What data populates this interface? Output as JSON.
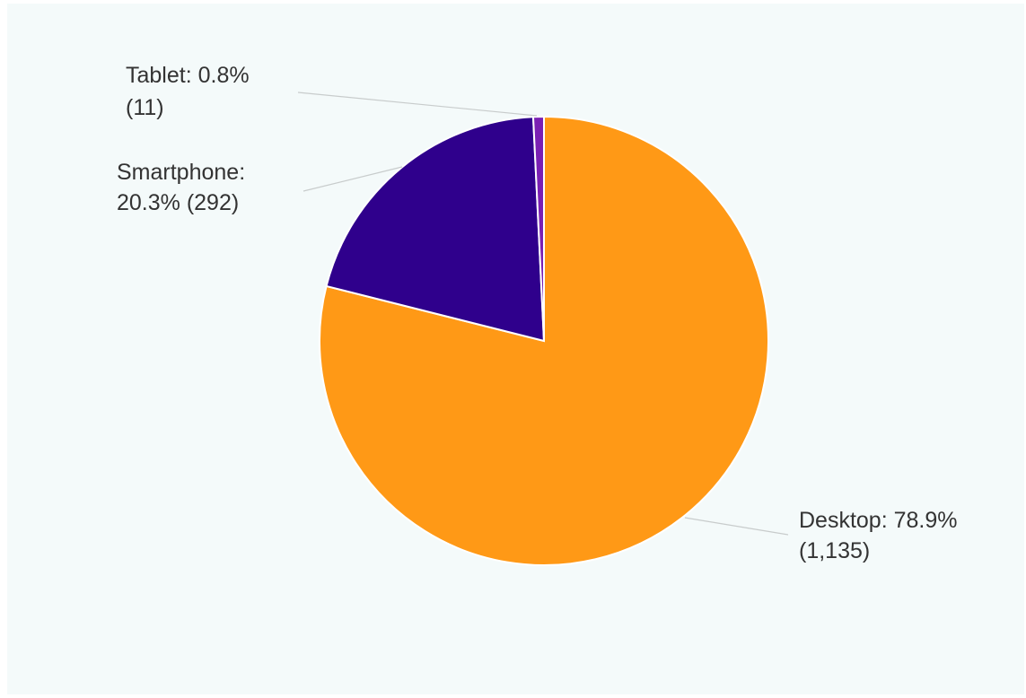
{
  "chart_data": {
    "type": "pie",
    "slices": [
      {
        "name": "Desktop",
        "value": 1135,
        "percent_label": "78.9%",
        "count_label": "(1,135)",
        "color": "#ff9916"
      },
      {
        "name": "Smartphone",
        "value": 292,
        "percent_label": "20.3%",
        "count_label": "(292)",
        "color": "#2f008c"
      },
      {
        "name": "Tablet",
        "value": 11,
        "percent_label": "0.8%",
        "count_label": "(11)",
        "color": "#7a1fb3"
      }
    ],
    "labels": {
      "desktop_line1": "Desktop: 78.9%",
      "desktop_line2": "(1,135)",
      "smartphone_line1": "Smartphone:",
      "smartphone_line2": "20.3% (292)",
      "tablet_line1": "Tablet: 0.8%",
      "tablet_line2": "(11)"
    },
    "start_angle": "12 o'clock",
    "direction": "clockwise"
  }
}
